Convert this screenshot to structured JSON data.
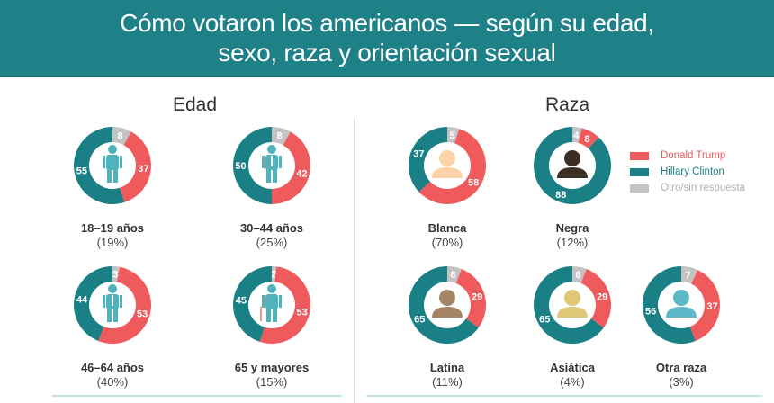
{
  "title_line1": "Cómo votaron los americanos — según su edad,",
  "title_line2": "sexo, raza y orientación sexual",
  "colors": {
    "trump": "#ef5a5c",
    "clinton": "#1b8085",
    "other": "#c3c3c3",
    "header": "#1d8187"
  },
  "legend": [
    {
      "label": "Donald Trump",
      "color": "#ef5a5c"
    },
    {
      "label": "Hillary Clinton",
      "color": "#1b8085"
    },
    {
      "label": "Otro/sin respuesta",
      "color": "#b8b8b8"
    }
  ],
  "chart_data": [
    {
      "type": "pie",
      "title": "Edad",
      "groups": [
        {
          "label": "18–19 años",
          "share": "(19%)",
          "trump": 37,
          "clinton": 55,
          "other": 8,
          "icon": "young-person-icon"
        },
        {
          "label": "30–44 años",
          "share": "(25%)",
          "trump": 42,
          "clinton": 50,
          "other": 8,
          "icon": "adult-person-icon"
        },
        {
          "label": "46–64 años",
          "share": "(40%)",
          "trump": 53,
          "clinton": 44,
          "other": 3,
          "icon": "businessman-icon"
        },
        {
          "label": "65  y mayores",
          "share": "(15%)",
          "trump": 53,
          "clinton": 45,
          "other": 2,
          "icon": "elderly-person-icon"
        }
      ]
    },
    {
      "type": "pie",
      "title": "Raza",
      "groups": [
        {
          "label": "Blanca",
          "share": "(70%)",
          "trump": 58,
          "clinton": 37,
          "other": 5,
          "icon": "person-silhouette-icon",
          "icon_color": "#fbd3a6"
        },
        {
          "label": "Negra",
          "share": "(12%)",
          "trump": 8,
          "clinton": 88,
          "other": 4,
          "icon": "person-silhouette-icon",
          "icon_color": "#3a2f25"
        },
        {
          "label": "Latina",
          "share": "(11%)",
          "trump": 29,
          "clinton": 65,
          "other": 6,
          "icon": "person-silhouette-icon",
          "icon_color": "#a58565"
        },
        {
          "label": "Asiática",
          "share": "(4%)",
          "trump": 29,
          "clinton": 65,
          "other": 6,
          "icon": "person-silhouette-icon",
          "icon_color": "#e0c775"
        },
        {
          "label": "Otra raza",
          "share": "(3%)",
          "trump": 37,
          "clinton": 56,
          "other": 7,
          "icon": "person-silhouette-icon",
          "icon_color": "#5fb8c8"
        }
      ]
    }
  ]
}
